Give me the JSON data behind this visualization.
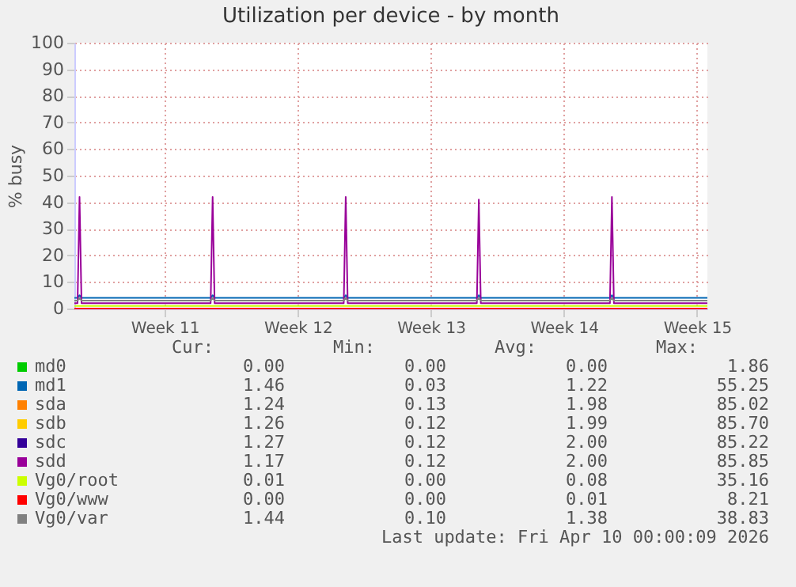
{
  "chart_data": {
    "type": "line",
    "title": "Utilization per device - by month",
    "ylabel": "% busy",
    "x": [
      "2026-03-04T06:00",
      "2026-03-04T10:00",
      "2026-03-04T12:30",
      "2026-03-04T15:00",
      "2026-03-05T12:00",
      "2026-03-07T06:00",
      "2026-03-09T00:00",
      "2026-03-10T18:00",
      "2026-03-11T10:00",
      "2026-03-11T12:30",
      "2026-03-11T15:00",
      "2026-03-12T12:00",
      "2026-03-14T06:00",
      "2026-03-16T00:00",
      "2026-03-17T18:00",
      "2026-03-18T10:00",
      "2026-03-18T12:30",
      "2026-03-18T15:00",
      "2026-03-19T12:00",
      "2026-03-21T06:00",
      "2026-03-23T00:00",
      "2026-03-24T18:00",
      "2026-03-25T10:00",
      "2026-03-25T12:30",
      "2026-03-25T15:00",
      "2026-03-26T12:00",
      "2026-03-28T06:00",
      "2026-03-30T00:00",
      "2026-03-31T18:00",
      "2026-04-01T10:00",
      "2026-04-01T12:30",
      "2026-04-01T15:00",
      "2026-04-02T12:00",
      "2026-04-04T06:00",
      "2026-04-06T00:00",
      "2026-04-06T13:00"
    ],
    "xlim": [
      "2026-03-04T06:00",
      "2026-04-06T13:00"
    ],
    "xticks": [
      {
        "value": "2026-03-09",
        "label": "Week 11"
      },
      {
        "value": "2026-03-16",
        "label": "Week 12"
      },
      {
        "value": "2026-03-23",
        "label": "Week 13"
      },
      {
        "value": "2026-03-30",
        "label": "Week 14"
      },
      {
        "value": "2026-04-06",
        "label": "Week 15"
      }
    ],
    "ylim": [
      0,
      100
    ],
    "yticks": [
      0,
      10,
      20,
      30,
      40,
      50,
      60,
      70,
      80,
      90,
      100
    ],
    "grid": true,
    "legend": "bottom",
    "series": [
      {
        "name": "md0",
        "color": "#00cc00",
        "values": [
          null,
          null,
          null,
          null,
          null,
          null,
          null,
          null,
          null,
          null,
          null,
          null,
          null,
          null,
          null,
          null,
          null,
          null,
          null,
          null,
          null,
          null,
          null,
          null,
          null,
          null,
          null,
          null,
          null,
          null,
          null,
          null,
          null,
          null,
          null,
          null
        ]
      },
      {
        "name": "md1",
        "color": "#0066b3",
        "values": [
          4,
          4,
          5,
          4,
          4,
          4,
          4,
          4,
          4,
          5,
          4,
          4,
          4,
          4,
          4,
          4,
          5,
          4,
          4,
          4,
          4,
          4,
          4,
          5,
          4,
          4,
          4,
          4,
          4,
          4,
          5,
          4,
          4,
          4,
          4,
          4
        ]
      },
      {
        "name": "sda",
        "color": "#ff8000",
        "values": [
          null,
          null,
          null,
          null,
          null,
          null,
          null,
          null,
          null,
          null,
          null,
          null,
          null,
          null,
          null,
          null,
          null,
          null,
          null,
          null,
          null,
          null,
          null,
          null,
          null,
          null,
          null,
          null,
          null,
          null,
          null,
          null,
          null,
          null,
          null,
          null
        ]
      },
      {
        "name": "sdb",
        "color": "#ffcc00",
        "values": [
          null,
          null,
          null,
          null,
          null,
          null,
          null,
          null,
          null,
          null,
          null,
          null,
          null,
          null,
          null,
          null,
          null,
          null,
          null,
          null,
          null,
          null,
          null,
          null,
          null,
          null,
          null,
          null,
          null,
          null,
          null,
          null,
          null,
          null,
          null,
          null
        ]
      },
      {
        "name": "sdc",
        "color": "#330099",
        "values": [
          null,
          null,
          null,
          null,
          null,
          null,
          null,
          null,
          null,
          null,
          null,
          null,
          null,
          null,
          null,
          null,
          null,
          null,
          null,
          null,
          null,
          null,
          null,
          null,
          null,
          null,
          null,
          null,
          null,
          null,
          null,
          null,
          null,
          null,
          null,
          null
        ]
      },
      {
        "name": "sdd",
        "color": "#990099",
        "values": [
          2,
          2,
          42,
          2,
          2,
          2,
          2,
          2,
          2,
          42,
          2,
          2,
          2,
          2,
          2,
          2,
          42,
          2,
          2,
          2,
          2,
          2,
          2,
          41,
          2,
          2,
          2,
          2,
          2,
          2,
          42,
          2,
          2,
          2,
          2,
          2
        ]
      },
      {
        "name": "Vg0/root",
        "color": "#ccff00",
        "values": [
          1,
          1,
          1,
          1,
          1,
          1,
          1,
          1,
          1,
          1,
          1,
          1,
          1,
          1,
          1,
          1,
          1,
          1,
          1,
          1,
          1,
          1,
          1,
          1,
          1,
          1,
          1,
          1,
          1,
          1,
          1,
          1,
          1,
          1,
          1,
          1
        ]
      },
      {
        "name": "Vg0/www",
        "color": "#ff0000",
        "values": [
          0,
          0,
          0,
          0,
          0,
          0,
          0,
          0,
          0,
          0,
          0,
          0,
          0,
          0,
          0,
          0,
          0,
          0,
          0,
          0,
          0,
          0,
          0,
          0,
          0,
          0,
          0,
          0,
          0,
          0,
          0,
          0,
          0,
          0,
          0,
          0
        ]
      },
      {
        "name": "Vg0/var",
        "color": "#808080",
        "values": [
          3,
          3,
          4,
          3,
          3,
          3,
          3,
          3,
          3,
          4,
          3,
          3,
          3,
          3,
          3,
          3,
          4,
          3,
          3,
          3,
          3,
          3,
          3,
          4,
          3,
          3,
          3,
          3,
          3,
          3,
          4,
          3,
          3,
          3,
          3,
          3
        ]
      }
    ],
    "annotations": [
      "Cur:",
      "Min:",
      "Avg:",
      "Max:",
      "0.00",
      "0.00",
      "0.00",
      "1.86",
      "1.46",
      "0.03",
      "1.22",
      "55.25",
      "1.24",
      "0.13",
      "1.98",
      "85.02",
      "1.26",
      "0.12",
      "1.99",
      "85.70",
      "1.27",
      "0.12",
      "2.00",
      "85.22",
      "1.17",
      "0.12",
      "2.00",
      "85.85",
      "0.01",
      "0.00",
      "0.08",
      "35.16",
      "0.00",
      "0.00",
      "0.01",
      "8.21",
      "1.44",
      "0.10",
      "1.38",
      "38.83",
      "Last update: Fri Apr 10 00:00:09 2026"
    ]
  }
}
